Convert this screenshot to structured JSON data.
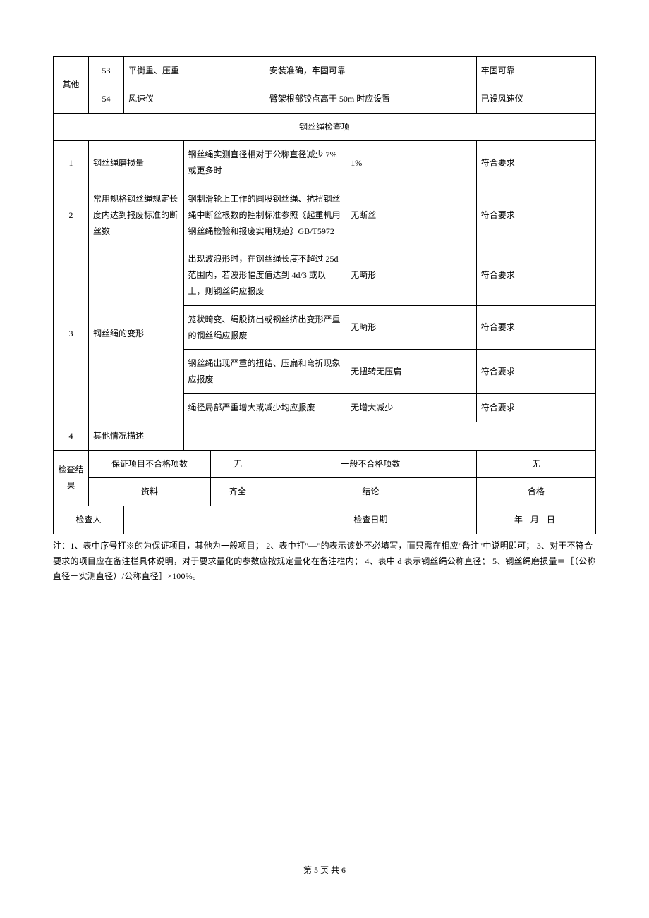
{
  "colors": {
    "border": "#000000",
    "background": "#ffffff",
    "text": "#000000"
  },
  "fonts": {
    "body_family": "SimSun",
    "body_size_pt": 10.5,
    "notes_size_pt": 10.5
  },
  "top_rows": [
    {
      "group_label": "其他",
      "no": "53",
      "name": "平衡重、压重",
      "requirement": "安装准确，牢固可靠",
      "result": "牢固可靠",
      "remark": ""
    },
    {
      "no": "54",
      "name": "风速仪",
      "requirement": "臂架根部铰点高于 50m 时应设置",
      "result": "已设风速仪",
      "remark": ""
    }
  ],
  "section_header": "钢丝绳检查项",
  "wire_rows": [
    {
      "no": "1",
      "name": "钢丝绳磨损量",
      "criteria": "钢丝绳实测直径相对于公称直径减少 7%或更多时",
      "measured": "1%",
      "result": "符合要求",
      "remark": ""
    },
    {
      "no": "2",
      "name": "常用规格钢丝绳规定长度内达到报废标准的断丝数",
      "criteria": "钢制滑轮上工作的圆股钢丝绳、抗扭钢丝绳中断丝根数的控制标准参照《起重机用钢丝绳检验和报废实用规范》GB/T5972",
      "measured": "无断丝",
      "result": "符合要求",
      "remark": ""
    },
    {
      "no": "3",
      "name": "钢丝绳的变形",
      "sub": [
        {
          "criteria": "出现波浪形时，在钢丝绳长度不超过 25d 范围内，若波形幅度值达到 4d/3 或以上，则钢丝绳应报废",
          "measured": "无畸形",
          "result": "符合要求",
          "remark": ""
        },
        {
          "criteria": "笼状畸变、绳股挤出或钢丝挤出变形严重的钢丝绳应报废",
          "measured": "无畸形",
          "result": "符合要求",
          "remark": ""
        },
        {
          "criteria": "钢丝绳出现严重的扭结、压扁和弯折现象应报废",
          "measured": "无扭转无压扁",
          "result": "符合要求",
          "remark": ""
        },
        {
          "criteria": "绳径局部严重增大或减少均应报废",
          "measured": "无增大减少",
          "result": "符合要求",
          "remark": ""
        }
      ]
    },
    {
      "no": "4",
      "name": "其他情况描述",
      "criteria": "",
      "measured": "",
      "result": "",
      "remark": ""
    }
  ],
  "check_result": {
    "label": "检查结果",
    "guarantee_fail_label": "保证项目不合格项数",
    "guarantee_fail_value": "无",
    "general_fail_label": "一般不合格项数",
    "general_fail_value": "无",
    "data_label": "资料",
    "data_value": "齐全",
    "conclusion_label": "结论",
    "conclusion_value": "合格"
  },
  "inspector": {
    "label": "检查人",
    "value": "",
    "date_label": "检查日期",
    "date_value": "年  月  日"
  },
  "notes": "注：1、表中序号打※的为保证项目，其他为一般项目； 2、表中打\"—\"的表示该处不必填写，而只需在相应\"备注\"中说明即可； 3、对于不符合要求的项目应在备注栏具体说明，对于要求量化的参数应按规定量化在备注栏内； 4、表中 d 表示钢丝绳公称直径； 5、钢丝绳磨损量＝［（公称直径－实测直径）/公称直径］×100%。",
  "footer": "第 5 页 共 6"
}
